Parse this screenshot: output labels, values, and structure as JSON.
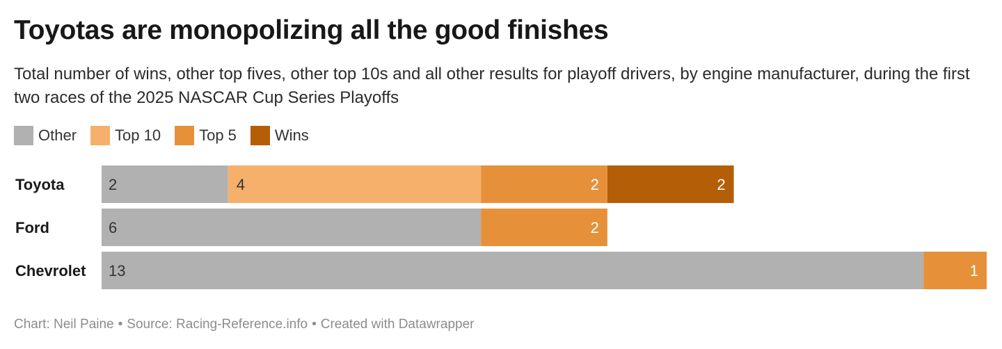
{
  "title": "Toyotas are monopolizing all the good finishes",
  "subtitle": "Total number of wins, other top fives, other top 10s and all other results for playoff drivers, by engine manufacturer, during the first two races of the 2025 NASCAR Cup Series Playoffs",
  "footer": {
    "chart_by": "Chart: Neil Paine",
    "source": "Source: Racing-Reference.info",
    "created": "Created with Datawrapper",
    "separator": "•"
  },
  "colors": {
    "other": "#b1b1b1",
    "top10": "#f5b06b",
    "top5": "#e6913a",
    "wins": "#b45e08",
    "label_dark": "#333333",
    "label_light": "#ffffff"
  },
  "chart_data": {
    "type": "bar",
    "orientation": "horizontal",
    "stacked": true,
    "title": "Toyotas are monopolizing all the good finishes",
    "categories": [
      "Toyota",
      "Ford",
      "Chevrolet"
    ],
    "series": [
      {
        "name": "Other",
        "color": "#b1b1b1",
        "values": [
          2,
          6,
          13
        ]
      },
      {
        "name": "Top 10",
        "color": "#f5b06b",
        "values": [
          4,
          0,
          0
        ]
      },
      {
        "name": "Top 5",
        "color": "#e6913a",
        "values": [
          2,
          2,
          1
        ]
      },
      {
        "name": "Wins",
        "color": "#b45e08",
        "values": [
          2,
          0,
          0
        ]
      }
    ],
    "xlim": [
      0,
      14
    ],
    "legend_position": "top-left",
    "grid": false
  }
}
